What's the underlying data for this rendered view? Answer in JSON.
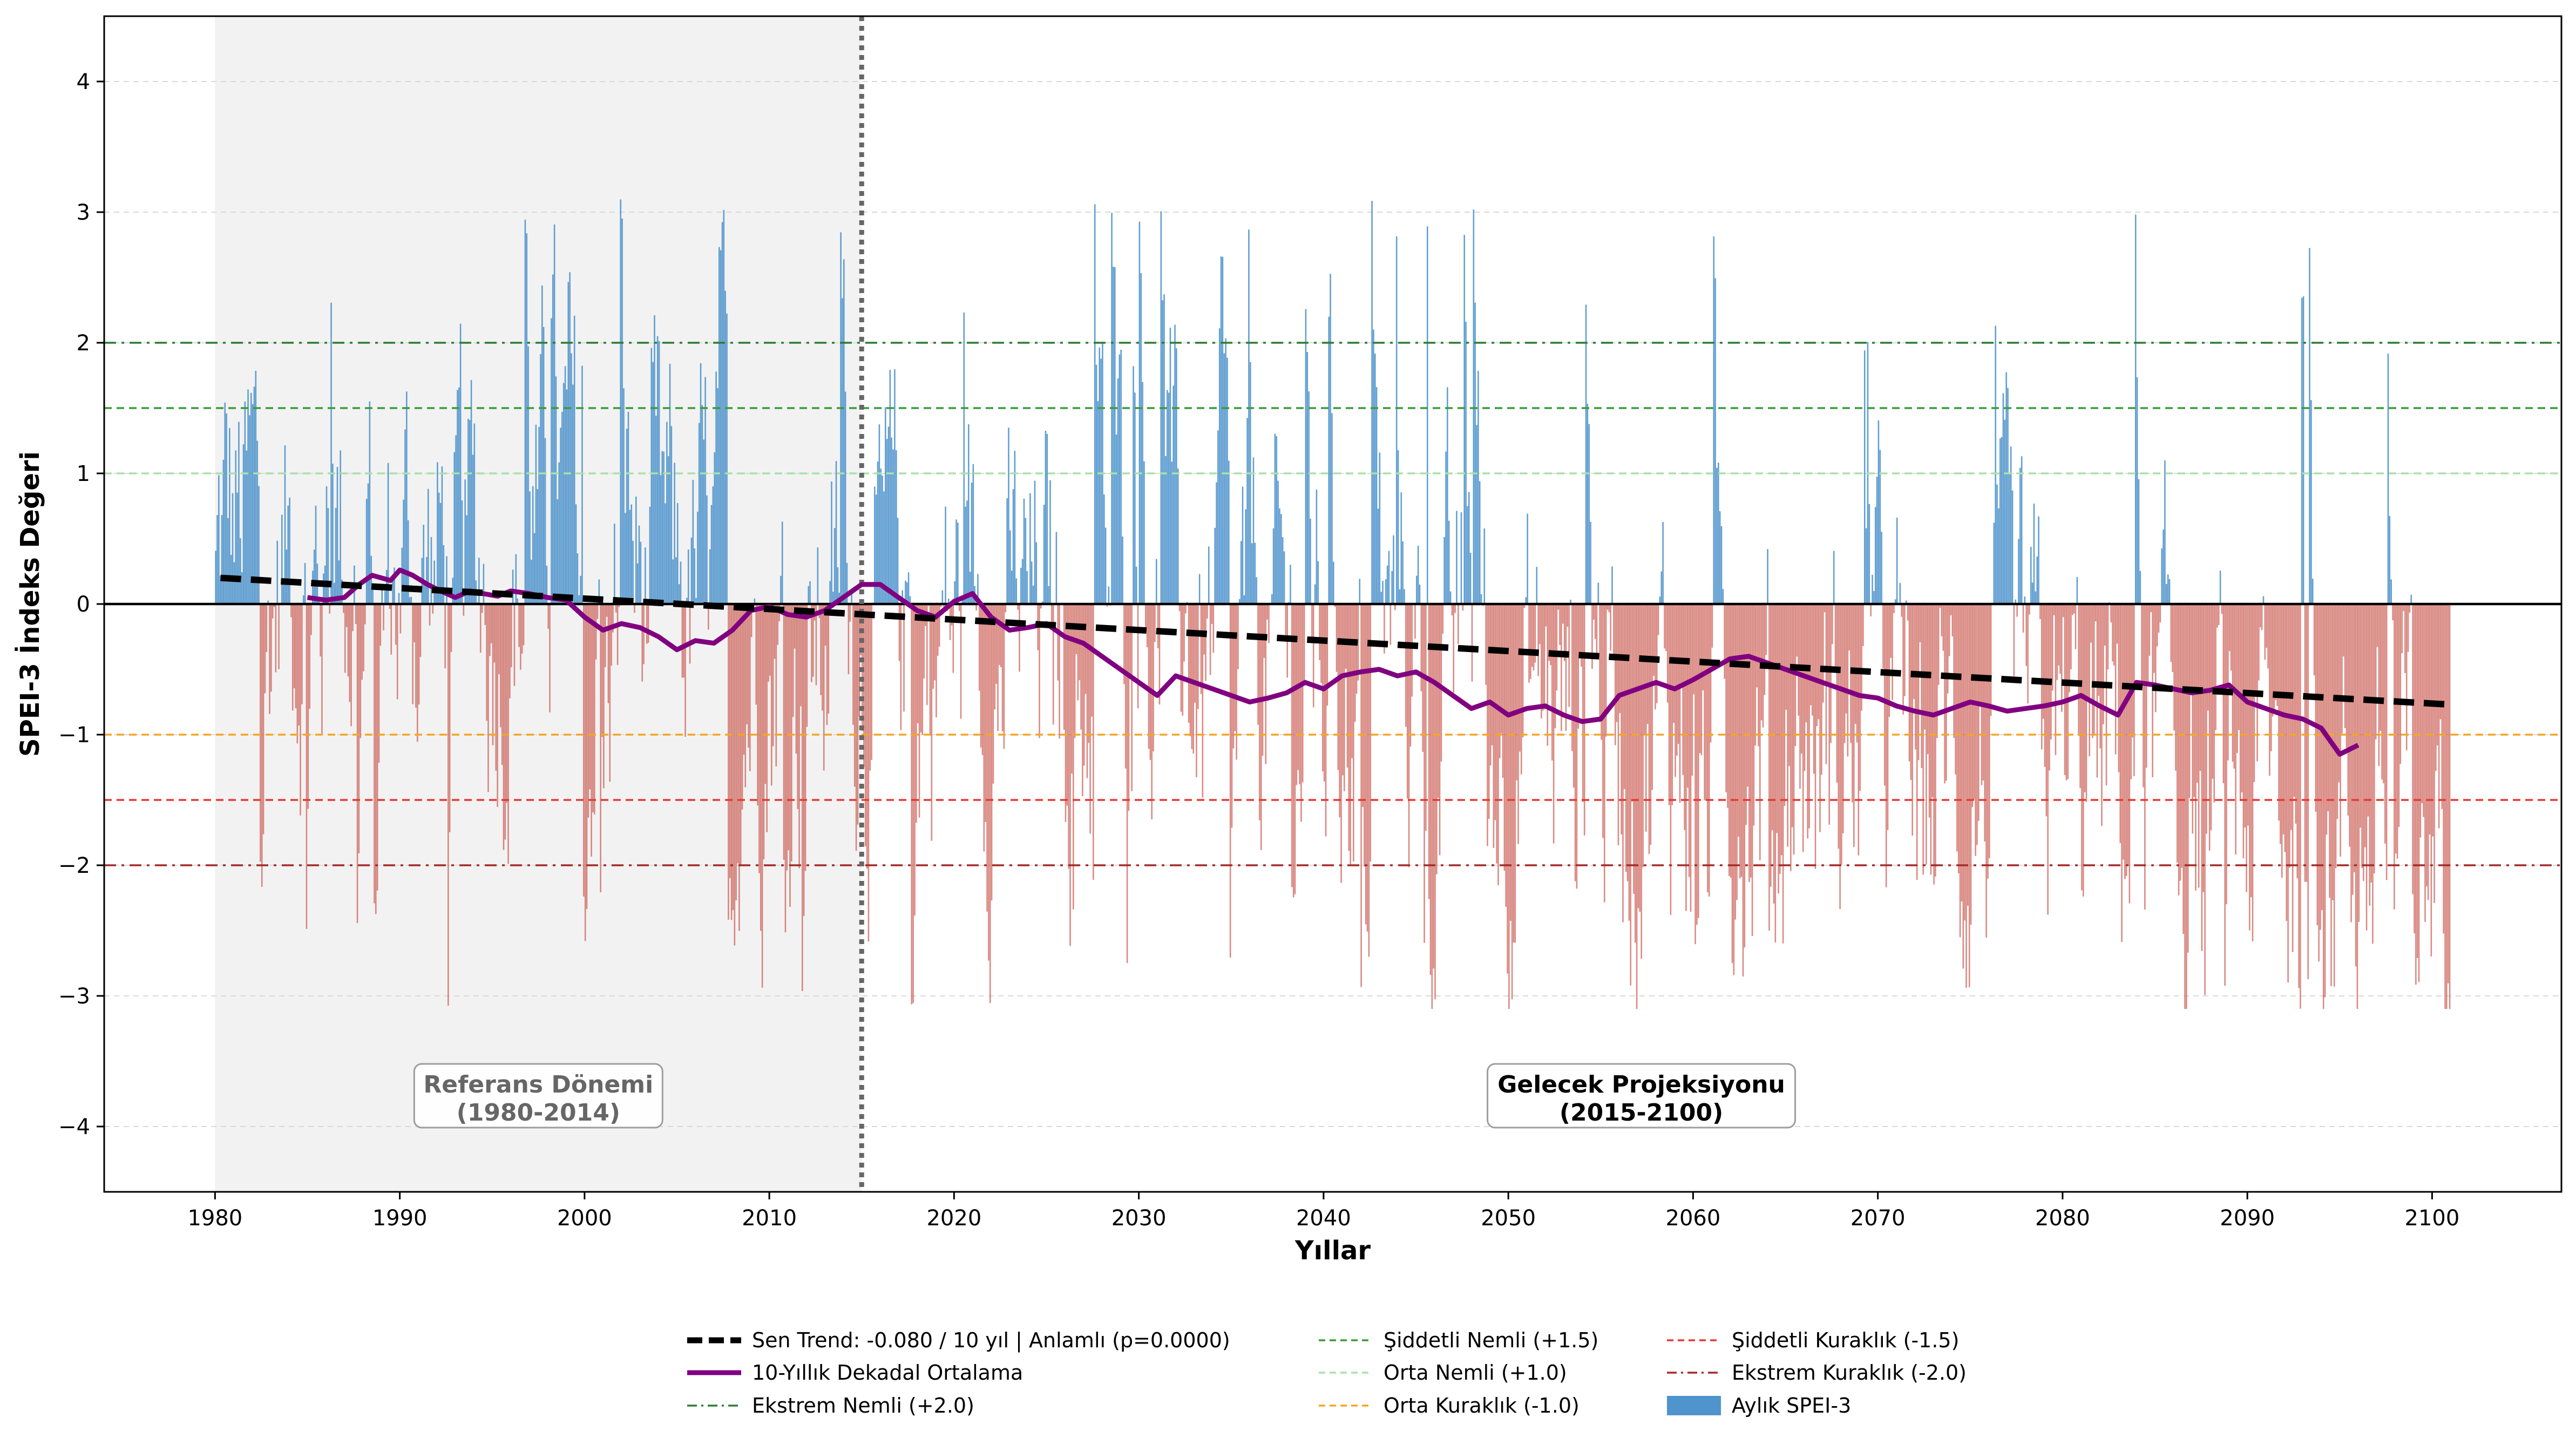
{
  "chart_data": {
    "type": "bar",
    "title": "",
    "xlabel": "Yıllar",
    "ylabel": "SPEI-3 İndeks Değeri",
    "xlim": [
      1974,
      2107
    ],
    "ylim": [
      -4.5,
      4.5
    ],
    "x_ticks": [
      "1980",
      "1990",
      "2000",
      "2010",
      "2020",
      "2030",
      "2040",
      "2050",
      "2060",
      "2070",
      "2080",
      "2090",
      "2100"
    ],
    "y_ticks": [
      "−4",
      "−3",
      "−2",
      "−1",
      "0",
      "1",
      "2",
      "3",
      "4"
    ],
    "grid": "horizontal dashed",
    "legend_position": "bottom-center",
    "colors": {
      "positive": "#4f94cc",
      "negative": "#c9574d",
      "trend": "#000000",
      "decadal": "#800080",
      "extreme_wet": "#2e7d32",
      "severe_wet": "#3c9a3c",
      "moderate_wet": "#a8e2a8",
      "moderate_dry": "#f5a623",
      "severe_dry": "#e53935",
      "extreme_dry": "#a52a2a",
      "period_line": "#666666",
      "reference_shade": "#f0f0f0"
    },
    "thresholds": [
      {
        "name": "Ekstrem Nemli (+2.0)",
        "value": 2.0,
        "style": "dashdot",
        "color_key": "extreme_wet"
      },
      {
        "name": "Şiddetli Nemli (+1.5)",
        "value": 1.5,
        "style": "dashed",
        "color_key": "severe_wet"
      },
      {
        "name": "Orta Nemli (+1.0)",
        "value": 1.0,
        "style": "dashed",
        "color_key": "moderate_wet"
      },
      {
        "name": "Orta Kuraklık (-1.0)",
        "value": -1.0,
        "style": "dashed",
        "color_key": "moderate_dry"
      },
      {
        "name": "Şiddetli Kuraklık (-1.5)",
        "value": -1.5,
        "style": "dashed",
        "color_key": "severe_dry"
      },
      {
        "name": "Ekstrem Kuraklık (-2.0)",
        "value": -2.0,
        "style": "dashdot",
        "color_key": "extreme_dry"
      }
    ],
    "reference_period": {
      "start": 1980,
      "end": 2015,
      "label_line1": "Referans Dönemi",
      "label_line2": "(1980-2014)"
    },
    "future_period": {
      "label_line1": "Gelecek Projeksiyonu",
      "label_line2": "(2015-2100)"
    },
    "period_divider_x": 2015,
    "monthly_series": {
      "name": "Aylık SPEI-3",
      "x_start": 1980.0,
      "x_end": 2101.0,
      "n_months": 1452,
      "note_values_shown_as_bars": true
    },
    "trend": {
      "name": "Sen Trend: -0.080 / 10 yıl | Anlamlı (p=0.0000)",
      "x": [
        1980.3,
        2101.0
      ],
      "y": [
        0.2,
        -0.77
      ]
    },
    "decadal_series": {
      "name": "10-Yıllık Dekadal Ortalama",
      "x": [
        1985.0,
        1986.0,
        1987.0,
        1987.8,
        1988.5,
        1989.0,
        1989.5,
        1990.0,
        1990.7,
        1991.5,
        1992.2,
        1993.0,
        1993.8,
        1994.5,
        1995.3,
        1996.0,
        1997.0,
        1998.0,
        1999.0,
        2000.0,
        2001.0,
        2002.0,
        2003.0,
        2004.0,
        2005.0,
        2006.0,
        2007.0,
        2008.0,
        2009.0,
        2010.0,
        2011.0,
        2012.0,
        2013.0,
        2014.0,
        2015.0,
        2016.0,
        2017.0,
        2018.0,
        2019.0,
        2020.0,
        2021.0,
        2022.0,
        2023.0,
        2024.0,
        2025.0,
        2026.0,
        2027.0,
        2028.0,
        2029.0,
        2030.0,
        2031.0,
        2032.0,
        2033.0,
        2034.0,
        2035.0,
        2036.0,
        2037.0,
        2038.0,
        2039.0,
        2040.0,
        2041.0,
        2042.0,
        2043.0,
        2044.0,
        2045.0,
        2046.0,
        2047.0,
        2048.0,
        2049.0,
        2050.0,
        2051.0,
        2052.0,
        2053.0,
        2054.0,
        2055.0,
        2056.0,
        2057.0,
        2058.0,
        2059.0,
        2060.0,
        2061.0,
        2062.0,
        2063.0,
        2064.0,
        2065.0,
        2066.0,
        2067.0,
        2068.0,
        2069.0,
        2070.0,
        2071.0,
        2072.0,
        2073.0,
        2074.0,
        2075.0,
        2076.0,
        2077.0,
        2078.0,
        2079.0,
        2080.0,
        2081.0,
        2082.0,
        2083.0,
        2084.0,
        2085.0,
        2086.0,
        2087.0,
        2088.0,
        2089.0,
        2090.0,
        2091.0,
        2092.0,
        2093.0,
        2094.0,
        2095.0,
        2096.0
      ],
      "y": [
        0.05,
        0.03,
        0.05,
        0.15,
        0.22,
        0.2,
        0.18,
        0.26,
        0.22,
        0.15,
        0.1,
        0.05,
        0.1,
        0.08,
        0.06,
        0.1,
        0.08,
        0.05,
        0.03,
        -0.1,
        -0.2,
        -0.15,
        -0.18,
        -0.25,
        -0.35,
        -0.28,
        -0.3,
        -0.2,
        -0.05,
        -0.02,
        -0.08,
        -0.1,
        -0.05,
        0.05,
        0.15,
        0.15,
        0.05,
        -0.05,
        -0.1,
        0.02,
        0.08,
        -0.1,
        -0.2,
        -0.18,
        -0.15,
        -0.25,
        -0.3,
        -0.4,
        -0.5,
        -0.6,
        -0.7,
        -0.55,
        -0.6,
        -0.65,
        -0.7,
        -0.75,
        -0.72,
        -0.68,
        -0.6,
        -0.65,
        -0.55,
        -0.52,
        -0.5,
        -0.55,
        -0.52,
        -0.6,
        -0.7,
        -0.8,
        -0.75,
        -0.85,
        -0.8,
        -0.78,
        -0.85,
        -0.9,
        -0.88,
        -0.7,
        -0.65,
        -0.6,
        -0.65,
        -0.58,
        -0.5,
        -0.42,
        -0.4,
        -0.45,
        -0.5,
        -0.55,
        -0.6,
        -0.65,
        -0.7,
        -0.72,
        -0.78,
        -0.82,
        -0.85,
        -0.8,
        -0.75,
        -0.78,
        -0.82,
        -0.8,
        -0.78,
        -0.75,
        -0.7,
        -0.78,
        -0.85,
        -0.6,
        -0.62,
        -0.65,
        -0.68,
        -0.66,
        -0.62,
        -0.75,
        -0.8,
        -0.85,
        -0.88,
        -0.95,
        -1.15,
        -1.08
      ]
    },
    "legend_items": [
      {
        "label": "Sen Trend: -0.080 / 10 yıl | Anlamlı (p=0.0000)",
        "kind": "trend"
      },
      {
        "label": "10-Yıllık Dekadal Ortalama",
        "kind": "decadal"
      },
      {
        "label": "Ekstrem Nemli (+2.0)",
        "kind": "extreme_wet"
      },
      {
        "label": "Şiddetli Nemli (+1.5)",
        "kind": "severe_wet"
      },
      {
        "label": "Orta Nemli (+1.0)",
        "kind": "moderate_wet"
      },
      {
        "label": "Orta Kuraklık (-1.0)",
        "kind": "moderate_dry"
      },
      {
        "label": "Şiddetli Kuraklık (-1.5)",
        "kind": "severe_dry"
      },
      {
        "label": "Ekstrem Kuraklık (-2.0)",
        "kind": "extreme_dry"
      },
      {
        "label": "Aylık SPEI-3",
        "kind": "positive"
      }
    ]
  }
}
